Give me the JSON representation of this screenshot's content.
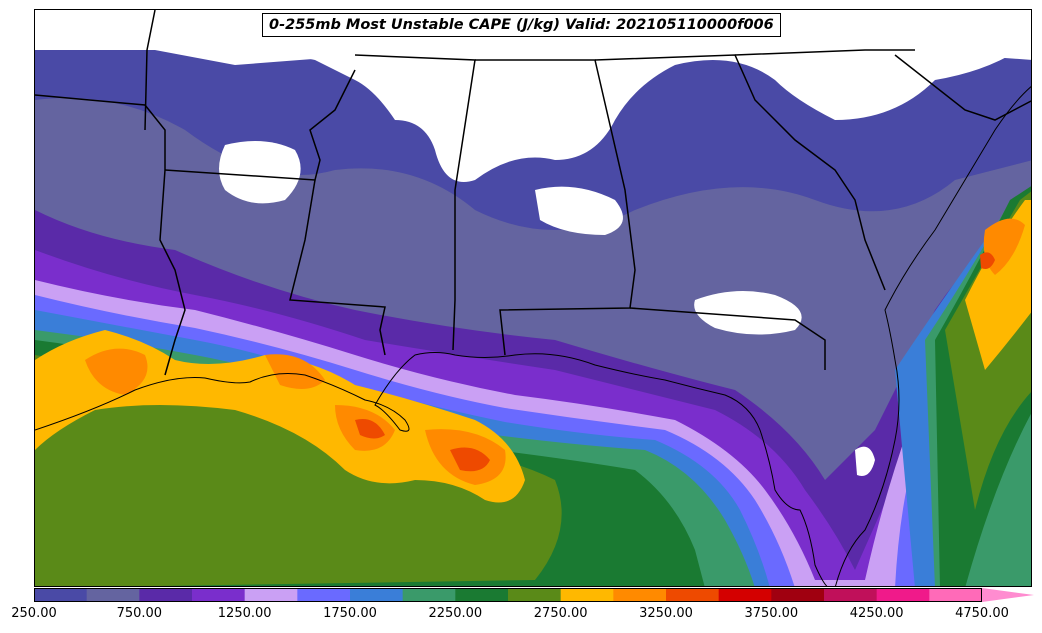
{
  "title": "0-255mb Most Unstable CAPE (J/kg) Valid: 202105110000f006",
  "colorbar": {
    "levels": [
      250,
      500,
      750,
      1000,
      1250,
      1500,
      1750,
      2000,
      2250,
      2500,
      2750,
      3000,
      3250,
      3500,
      3750,
      4000,
      4250,
      4500,
      4750
    ],
    "colors": [
      "#4a4aa6",
      "#6464a0",
      "#5a2aa8",
      "#7a2ecc",
      "#caa0f4",
      "#6a6aff",
      "#3a7ed8",
      "#3a9a6a",
      "#1a7a32",
      "#5a8a18",
      "#ffb800",
      "#ff8a00",
      "#ee4a00",
      "#d40000",
      "#a00010",
      "#c0105a",
      "#f01a8a",
      "#ff6ab8"
    ],
    "extend_color": "#ff8cd0",
    "tick_labels": [
      "250.00",
      "750.00",
      "1250.00",
      "1750.00",
      "2250.00",
      "2750.00",
      "3250.00",
      "3750.00",
      "4250.00",
      "4750.00"
    ]
  }
}
